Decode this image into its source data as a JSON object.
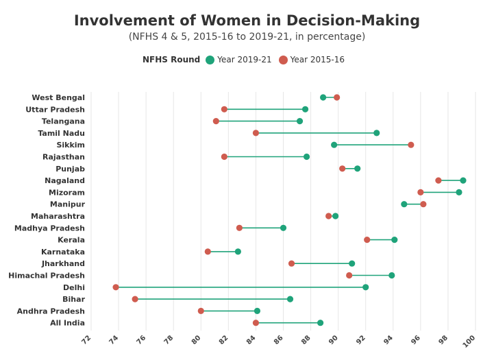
{
  "chart_data": {
    "type": "dumbbell",
    "title": "Involvement of Women in Decision-Making",
    "subtitle": "(NFHS 4 & 5, 2015-16 to 2019-21, in percentage)",
    "legend_title": "NFHS Round",
    "xlim": [
      72,
      100
    ],
    "xticks": [
      72,
      74,
      76,
      78,
      80,
      82,
      84,
      86,
      88,
      90,
      92,
      94,
      96,
      98,
      100
    ],
    "grid": true,
    "colors": {
      "y2019": "#1fa37a",
      "y2015": "#cf5c4f",
      "connector": "#1fa37a"
    },
    "series": [
      {
        "name": "Year 2019-21",
        "key": "y2019"
      },
      {
        "name": "Year 2015-16",
        "key": "y2015"
      }
    ],
    "states": [
      {
        "name": "West Bengal",
        "y2015": 89.9,
        "y2019": 88.9
      },
      {
        "name": "Uttar Pradesh",
        "y2015": 81.7,
        "y2019": 87.6
      },
      {
        "name": "Telangana",
        "y2015": 81.1,
        "y2019": 87.2
      },
      {
        "name": "Tamil Nadu",
        "y2015": 84.0,
        "y2019": 92.8
      },
      {
        "name": "Sikkim",
        "y2015": 95.3,
        "y2019": 89.7
      },
      {
        "name": "Rajasthan",
        "y2015": 81.7,
        "y2019": 87.7
      },
      {
        "name": "Punjab",
        "y2015": 90.3,
        "y2019": 91.4
      },
      {
        "name": "Nagaland",
        "y2015": 97.3,
        "y2019": 99.1
      },
      {
        "name": "Mizoram",
        "y2015": 96.0,
        "y2019": 98.8
      },
      {
        "name": "Manipur",
        "y2015": 96.2,
        "y2019": 94.8
      },
      {
        "name": "Maharashtra",
        "y2015": 89.3,
        "y2019": 89.8
      },
      {
        "name": "Madhya Pradesh",
        "y2015": 82.8,
        "y2019": 86.0
      },
      {
        "name": "Kerala",
        "y2015": 92.1,
        "y2019": 94.1
      },
      {
        "name": "Karnataka",
        "y2015": 80.5,
        "y2019": 82.7
      },
      {
        "name": "Jharkhand",
        "y2015": 86.6,
        "y2019": 91.0
      },
      {
        "name": "Himachal Pradesh",
        "y2015": 90.8,
        "y2019": 93.9
      },
      {
        "name": "Delhi",
        "y2015": 73.8,
        "y2019": 92.0
      },
      {
        "name": "Bihar",
        "y2015": 75.2,
        "y2019": 86.5
      },
      {
        "name": "Andhra Pradesh",
        "y2015": 80.0,
        "y2019": 84.1
      },
      {
        "name": "All India",
        "y2015": 84.0,
        "y2019": 88.7
      }
    ]
  }
}
